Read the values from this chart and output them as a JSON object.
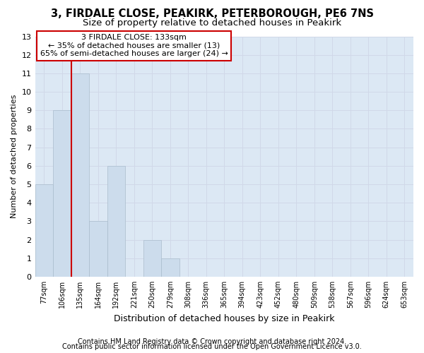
{
  "title1": "3, FIRDALE CLOSE, PEAKIRK, PETERBOROUGH, PE6 7NS",
  "title2": "Size of property relative to detached houses in Peakirk",
  "xlabel": "Distribution of detached houses by size in Peakirk",
  "ylabel": "Number of detached properties",
  "bar_labels": [
    "77sqm",
    "106sqm",
    "135sqm",
    "164sqm",
    "192sqm",
    "221sqm",
    "250sqm",
    "279sqm",
    "308sqm",
    "336sqm",
    "365sqm",
    "394sqm",
    "423sqm",
    "452sqm",
    "480sqm",
    "509sqm",
    "538sqm",
    "567sqm",
    "596sqm",
    "624sqm",
    "653sqm"
  ],
  "bar_values": [
    5,
    9,
    11,
    3,
    6,
    0,
    2,
    1,
    0,
    0,
    0,
    0,
    0,
    0,
    0,
    0,
    0,
    0,
    0,
    0,
    0
  ],
  "bar_color": "#ccdcec",
  "bar_edge_color": "#aabccc",
  "vline_color": "#cc0000",
  "vline_x_index": 2,
  "annotation_text": "3 FIRDALE CLOSE: 133sqm\n← 35% of detached houses are smaller (13)\n65% of semi-detached houses are larger (24) →",
  "annotation_box_color": "#ffffff",
  "annotation_box_edge": "#cc0000",
  "ylim": [
    0,
    13
  ],
  "yticks": [
    0,
    1,
    2,
    3,
    4,
    5,
    6,
    7,
    8,
    9,
    10,
    11,
    12,
    13
  ],
  "grid_color": "#d0d8e8",
  "bg_color": "#dce8f4",
  "footer1": "Contains HM Land Registry data © Crown copyright and database right 2024.",
  "footer2": "Contains public sector information licensed under the Open Government Licence v3.0.",
  "title1_fontsize": 10.5,
  "title2_fontsize": 9.5,
  "annot_fontsize": 8,
  "footer_fontsize": 7,
  "ylabel_fontsize": 8,
  "xlabel_fontsize": 9
}
